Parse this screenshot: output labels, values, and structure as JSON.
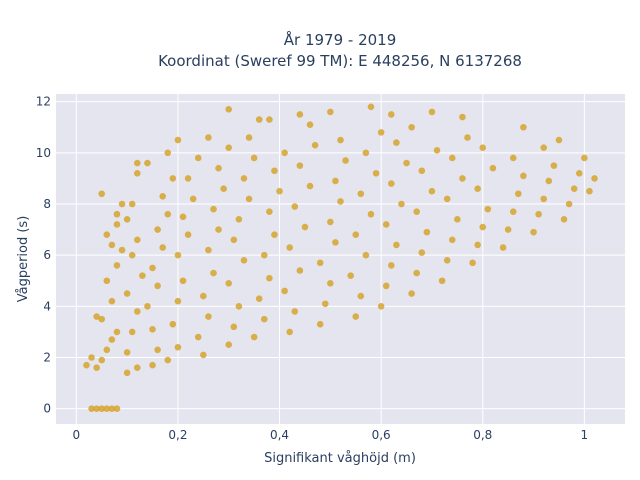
{
  "chart_data": {
    "type": "scatter",
    "title_line1": "År 1979 - 2019",
    "title_line2": "Koordinat (Sweref 99 TM): E 448256, N 6137268",
    "xlabel": "Signifikant våghöjd (m)",
    "ylabel": "Vågperiod (s)",
    "xlim": [
      -0.04,
      1.08
    ],
    "ylim": [
      -0.6,
      12.3
    ],
    "x_ticks": [
      0,
      0.2,
      0.4,
      0.6,
      0.8,
      1
    ],
    "x_tick_labels": [
      "0",
      "0,2",
      "0,4",
      "0,6",
      "0,8",
      "1"
    ],
    "y_ticks": [
      0,
      2,
      4,
      6,
      8,
      10,
      12
    ],
    "y_tick_labels": [
      "0",
      "2",
      "4",
      "6",
      "8",
      "10",
      "12"
    ],
    "grid": true,
    "legend": "none",
    "colors": {
      "marker": "#D4A020",
      "plot_bg": "#E5E5F0",
      "grid": "#ffffff",
      "text": "#2a3f5f"
    },
    "points": [
      [
        0.02,
        1.7
      ],
      [
        0.03,
        0
      ],
      [
        0.04,
        0
      ],
      [
        0.05,
        0
      ],
      [
        0.06,
        0
      ],
      [
        0.07,
        0
      ],
      [
        0.08,
        0
      ],
      [
        0.04,
        1.6
      ],
      [
        0.05,
        1.9
      ],
      [
        0.06,
        2.3
      ],
      [
        0.07,
        2.7
      ],
      [
        0.08,
        3.0
      ],
      [
        0.05,
        3.5
      ],
      [
        0.07,
        4.2
      ],
      [
        0.06,
        5.0
      ],
      [
        0.08,
        5.6
      ],
      [
        0.09,
        6.2
      ],
      [
        0.06,
        6.8
      ],
      [
        0.08,
        7.2
      ],
      [
        0.05,
        8.4
      ],
      [
        0.1,
        1.4
      ],
      [
        0.12,
        1.6
      ],
      [
        0.1,
        2.2
      ],
      [
        0.11,
        3.0
      ],
      [
        0.12,
        3.8
      ],
      [
        0.1,
        4.5
      ],
      [
        0.13,
        5.2
      ],
      [
        0.11,
        6.0
      ],
      [
        0.12,
        6.6
      ],
      [
        0.1,
        7.4
      ],
      [
        0.11,
        8.0
      ],
      [
        0.12,
        9.6
      ],
      [
        0.14,
        9.6
      ],
      [
        0.15,
        1.7
      ],
      [
        0.16,
        2.3
      ],
      [
        0.15,
        3.1
      ],
      [
        0.14,
        4.0
      ],
      [
        0.16,
        4.8
      ],
      [
        0.15,
        5.5
      ],
      [
        0.17,
        6.3
      ],
      [
        0.16,
        7.0
      ],
      [
        0.18,
        7.6
      ],
      [
        0.17,
        8.3
      ],
      [
        0.19,
        9.0
      ],
      [
        0.18,
        1.9
      ],
      [
        0.2,
        2.4
      ],
      [
        0.19,
        3.3
      ],
      [
        0.2,
        4.2
      ],
      [
        0.21,
        5.0
      ],
      [
        0.2,
        6.0
      ],
      [
        0.22,
        6.8
      ],
      [
        0.21,
        7.5
      ],
      [
        0.23,
        8.2
      ],
      [
        0.22,
        9.0
      ],
      [
        0.24,
        9.8
      ],
      [
        0.25,
        2.1
      ],
      [
        0.24,
        2.8
      ],
      [
        0.26,
        3.6
      ],
      [
        0.25,
        4.4
      ],
      [
        0.27,
        5.3
      ],
      [
        0.26,
        6.2
      ],
      [
        0.28,
        7.0
      ],
      [
        0.27,
        7.8
      ],
      [
        0.29,
        8.6
      ],
      [
        0.28,
        9.4
      ],
      [
        0.3,
        10.2
      ],
      [
        0.3,
        2.5
      ],
      [
        0.31,
        3.2
      ],
      [
        0.32,
        4.0
      ],
      [
        0.3,
        4.9
      ],
      [
        0.33,
        5.8
      ],
      [
        0.31,
        6.6
      ],
      [
        0.32,
        7.4
      ],
      [
        0.34,
        8.2
      ],
      [
        0.33,
        9.0
      ],
      [
        0.35,
        9.8
      ],
      [
        0.34,
        10.6
      ],
      [
        0.36,
        11.3
      ],
      [
        0.35,
        2.8
      ],
      [
        0.37,
        3.5
      ],
      [
        0.36,
        4.3
      ],
      [
        0.38,
        5.1
      ],
      [
        0.37,
        6.0
      ],
      [
        0.39,
        6.8
      ],
      [
        0.38,
        7.7
      ],
      [
        0.4,
        8.5
      ],
      [
        0.39,
        9.3
      ],
      [
        0.41,
        10.0
      ],
      [
        0.42,
        3.0
      ],
      [
        0.43,
        3.8
      ],
      [
        0.41,
        4.6
      ],
      [
        0.44,
        5.4
      ],
      [
        0.42,
        6.3
      ],
      [
        0.45,
        7.1
      ],
      [
        0.43,
        7.9
      ],
      [
        0.46,
        8.7
      ],
      [
        0.44,
        9.5
      ],
      [
        0.47,
        10.3
      ],
      [
        0.46,
        11.1
      ],
      [
        0.48,
        3.3
      ],
      [
        0.49,
        4.1
      ],
      [
        0.5,
        4.9
      ],
      [
        0.48,
        5.7
      ],
      [
        0.51,
        6.5
      ],
      [
        0.5,
        7.3
      ],
      [
        0.52,
        8.1
      ],
      [
        0.51,
        8.9
      ],
      [
        0.53,
        9.7
      ],
      [
        0.52,
        10.5
      ],
      [
        0.55,
        3.6
      ],
      [
        0.56,
        4.4
      ],
      [
        0.54,
        5.2
      ],
      [
        0.57,
        6.0
      ],
      [
        0.55,
        6.8
      ],
      [
        0.58,
        7.6
      ],
      [
        0.56,
        8.4
      ],
      [
        0.59,
        9.2
      ],
      [
        0.57,
        10.0
      ],
      [
        0.6,
        10.8
      ],
      [
        0.6,
        4.0
      ],
      [
        0.61,
        4.8
      ],
      [
        0.62,
        5.6
      ],
      [
        0.63,
        6.4
      ],
      [
        0.61,
        7.2
      ],
      [
        0.64,
        8.0
      ],
      [
        0.62,
        8.8
      ],
      [
        0.65,
        9.6
      ],
      [
        0.63,
        10.4
      ],
      [
        0.66,
        11.0
      ],
      [
        0.66,
        4.5
      ],
      [
        0.67,
        5.3
      ],
      [
        0.68,
        6.1
      ],
      [
        0.69,
        6.9
      ],
      [
        0.67,
        7.7
      ],
      [
        0.7,
        8.5
      ],
      [
        0.68,
        9.3
      ],
      [
        0.71,
        10.1
      ],
      [
        0.72,
        5.0
      ],
      [
        0.73,
        5.8
      ],
      [
        0.74,
        6.6
      ],
      [
        0.75,
        7.4
      ],
      [
        0.73,
        8.2
      ],
      [
        0.76,
        9.0
      ],
      [
        0.74,
        9.8
      ],
      [
        0.77,
        10.6
      ],
      [
        0.78,
        5.7
      ],
      [
        0.79,
        6.4
      ],
      [
        0.8,
        7.1
      ],
      [
        0.81,
        7.8
      ],
      [
        0.79,
        8.6
      ],
      [
        0.82,
        9.4
      ],
      [
        0.8,
        10.2
      ],
      [
        0.84,
        6.3
      ],
      [
        0.85,
        7.0
      ],
      [
        0.86,
        7.7
      ],
      [
        0.87,
        8.4
      ],
      [
        0.88,
        9.1
      ],
      [
        0.86,
        9.8
      ],
      [
        0.9,
        6.9
      ],
      [
        0.91,
        7.6
      ],
      [
        0.92,
        8.2
      ],
      [
        0.93,
        8.9
      ],
      [
        0.94,
        9.5
      ],
      [
        0.92,
        10.2
      ],
      [
        0.96,
        7.4
      ],
      [
        0.97,
        8.0
      ],
      [
        0.98,
        8.6
      ],
      [
        0.99,
        9.2
      ],
      [
        1.0,
        9.8
      ],
      [
        1.02,
        9.0
      ],
      [
        1.01,
        8.5
      ],
      [
        0.95,
        10.5
      ],
      [
        0.88,
        11.0
      ],
      [
        0.76,
        11.4
      ],
      [
        0.7,
        11.6
      ],
      [
        0.62,
        11.5
      ],
      [
        0.58,
        11.8
      ],
      [
        0.5,
        11.6
      ],
      [
        0.44,
        11.5
      ],
      [
        0.38,
        11.3
      ],
      [
        0.3,
        11.7
      ],
      [
        0.26,
        10.6
      ],
      [
        0.2,
        10.5
      ],
      [
        0.18,
        10.0
      ],
      [
        0.12,
        9.2
      ],
      [
        0.08,
        7.6
      ],
      [
        0.09,
        8.0
      ],
      [
        0.07,
        6.4
      ],
      [
        0.04,
        3.6
      ],
      [
        0.03,
        2.0
      ]
    ]
  }
}
